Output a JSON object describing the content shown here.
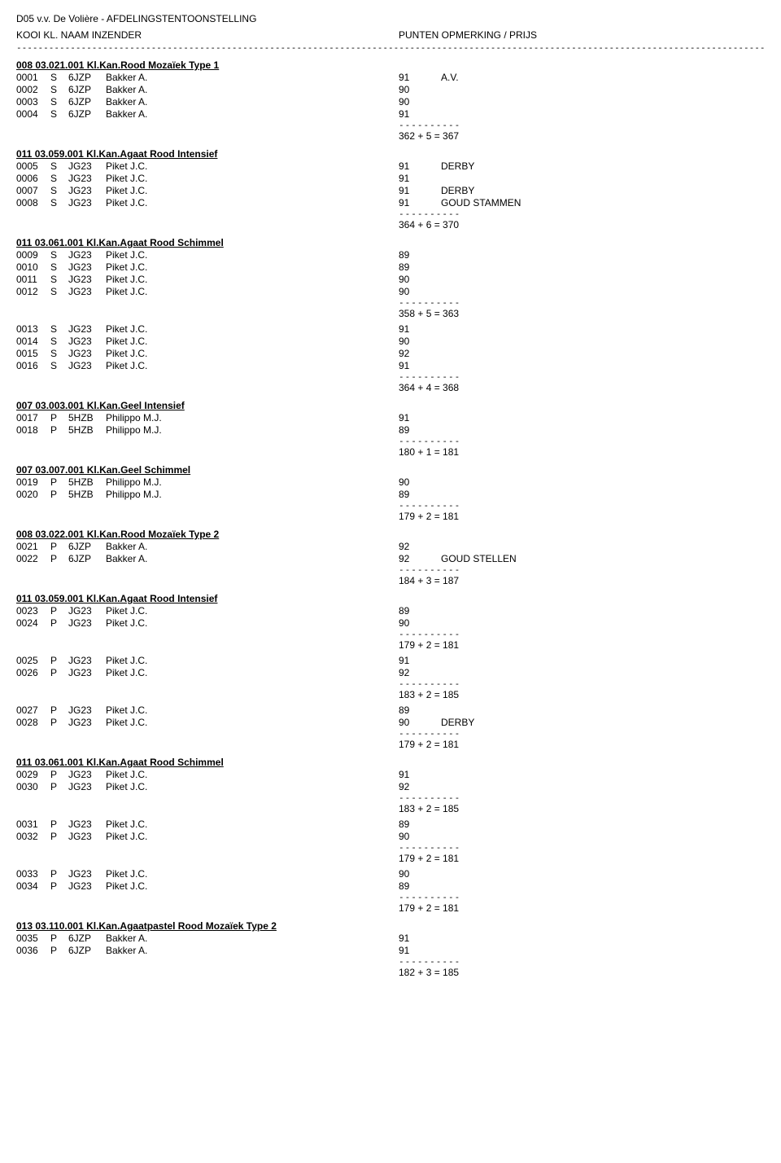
{
  "header": {
    "title": "D05 v.v. De Volière  -  AFDELINGSTENTOONSTELLING",
    "col_left": "KOOI  KL.  NAAM INZENDER",
    "col_right": "PUNTEN  OPMERKING / PRIJS",
    "dashline": "-----------------------------------------------------------------------------------------------------------------------------------------------------------------------------------------------------------------"
  },
  "groups": [
    {
      "header": "008 03.021.001  Kl.Kan.Rood Mozaïek Type 1",
      "blocks": [
        {
          "rows": [
            {
              "kooi": "0001",
              "kl": "S",
              "code": "6JZP",
              "naam": "Bakker A.",
              "punt": "91",
              "opm": "A.V."
            },
            {
              "kooi": "0002",
              "kl": "S",
              "code": "6JZP",
              "naam": "Bakker A.",
              "punt": "90",
              "opm": ""
            },
            {
              "kooi": "0003",
              "kl": "S",
              "code": "6JZP",
              "naam": "Bakker A.",
              "punt": "90",
              "opm": ""
            },
            {
              "kooi": "0004",
              "kl": "S",
              "code": "6JZP",
              "naam": "Bakker A.",
              "punt": "91",
              "opm": ""
            }
          ],
          "sep": "----------",
          "total": " 362 + 5 = 367"
        }
      ]
    },
    {
      "header": "011 03.059.001  Kl.Kan.Agaat Rood Intensief",
      "blocks": [
        {
          "rows": [
            {
              "kooi": "0005",
              "kl": "S",
              "code": "JG23",
              "naam": "Piket J.C.",
              "punt": "91",
              "opm": "DERBY"
            },
            {
              "kooi": "0006",
              "kl": "S",
              "code": "JG23",
              "naam": "Piket J.C.",
              "punt": "91",
              "opm": ""
            },
            {
              "kooi": "0007",
              "kl": "S",
              "code": "JG23",
              "naam": "Piket J.C.",
              "punt": "91",
              "opm": "DERBY"
            },
            {
              "kooi": "0008",
              "kl": "S",
              "code": "JG23",
              "naam": "Piket J.C.",
              "punt": "91",
              "opm": "GOUD STAMMEN"
            }
          ],
          "sep": "----------",
          "total": " 364 + 6 = 370"
        }
      ]
    },
    {
      "header": "011 03.061.001  Kl.Kan.Agaat Rood Schimmel",
      "blocks": [
        {
          "rows": [
            {
              "kooi": "0009",
              "kl": "S",
              "code": "JG23",
              "naam": "Piket J.C.",
              "punt": "89",
              "opm": ""
            },
            {
              "kooi": "0010",
              "kl": "S",
              "code": "JG23",
              "naam": "Piket J.C.",
              "punt": "89",
              "opm": ""
            },
            {
              "kooi": "0011",
              "kl": "S",
              "code": "JG23",
              "naam": "Piket J.C.",
              "punt": "90",
              "opm": ""
            },
            {
              "kooi": "0012",
              "kl": "S",
              "code": "JG23",
              "naam": "Piket J.C.",
              "punt": "90",
              "opm": ""
            }
          ],
          "sep": "----------",
          "total": " 358 + 5 = 363"
        },
        {
          "rows": [
            {
              "kooi": "0013",
              "kl": "S",
              "code": "JG23",
              "naam": "Piket J.C.",
              "punt": "91",
              "opm": ""
            },
            {
              "kooi": "0014",
              "kl": "S",
              "code": "JG23",
              "naam": "Piket J.C.",
              "punt": "90",
              "opm": ""
            },
            {
              "kooi": "0015",
              "kl": "S",
              "code": "JG23",
              "naam": "Piket J.C.",
              "punt": "92",
              "opm": ""
            },
            {
              "kooi": "0016",
              "kl": "S",
              "code": "JG23",
              "naam": "Piket J.C.",
              "punt": "91",
              "opm": ""
            }
          ],
          "sep": "----------",
          "total": " 364 + 4 = 368"
        }
      ]
    },
    {
      "header": "007 03.003.001  Kl.Kan.Geel Intensief",
      "blocks": [
        {
          "rows": [
            {
              "kooi": "0017",
              "kl": "P",
              "code": "5HZB",
              "naam": "Philippo M.J.",
              "punt": "91",
              "opm": ""
            },
            {
              "kooi": "0018",
              "kl": "P",
              "code": "5HZB",
              "naam": "Philippo M.J.",
              "punt": "89",
              "opm": ""
            }
          ],
          "sep": "----------",
          "total": " 180 + 1 = 181"
        }
      ]
    },
    {
      "header": "007 03.007.001  Kl.Kan.Geel Schimmel",
      "blocks": [
        {
          "rows": [
            {
              "kooi": "0019",
              "kl": "P",
              "code": "5HZB",
              "naam": "Philippo M.J.",
              "punt": "90",
              "opm": ""
            },
            {
              "kooi": "0020",
              "kl": "P",
              "code": "5HZB",
              "naam": "Philippo M.J.",
              "punt": "89",
              "opm": ""
            }
          ],
          "sep": "----------",
          "total": " 179 + 2 = 181"
        }
      ]
    },
    {
      "header": "008 03.022.001  Kl.Kan.Rood Mozaïek Type 2",
      "blocks": [
        {
          "rows": [
            {
              "kooi": "0021",
              "kl": "P",
              "code": "6JZP",
              "naam": "Bakker A.",
              "punt": "92",
              "opm": ""
            },
            {
              "kooi": "0022",
              "kl": "P",
              "code": "6JZP",
              "naam": "Bakker A.",
              "punt": "92",
              "opm": "GOUD STELLEN"
            }
          ],
          "sep": "----------",
          "total": " 184 + 3 = 187"
        }
      ]
    },
    {
      "header": "011 03.059.001  Kl.Kan.Agaat Rood Intensief",
      "blocks": [
        {
          "rows": [
            {
              "kooi": "0023",
              "kl": "P",
              "code": "JG23",
              "naam": "Piket J.C.",
              "punt": "89",
              "opm": ""
            },
            {
              "kooi": "0024",
              "kl": "P",
              "code": "JG23",
              "naam": "Piket J.C.",
              "punt": "90",
              "opm": ""
            }
          ],
          "sep": "----------",
          "total": " 179 + 2 = 181"
        },
        {
          "rows": [
            {
              "kooi": "0025",
              "kl": "P",
              "code": "JG23",
              "naam": "Piket J.C.",
              "punt": "91",
              "opm": ""
            },
            {
              "kooi": "0026",
              "kl": "P",
              "code": "JG23",
              "naam": "Piket J.C.",
              "punt": "92",
              "opm": ""
            }
          ],
          "sep": "----------",
          "total": " 183 + 2 = 185"
        },
        {
          "rows": [
            {
              "kooi": "0027",
              "kl": "P",
              "code": "JG23",
              "naam": "Piket J.C.",
              "punt": "89",
              "opm": ""
            },
            {
              "kooi": "0028",
              "kl": "P",
              "code": "JG23",
              "naam": "Piket J.C.",
              "punt": "90",
              "opm": "DERBY"
            }
          ],
          "sep": "----------",
          "total": " 179 + 2 = 181"
        }
      ]
    },
    {
      "header": "011 03.061.001  Kl.Kan.Agaat Rood Schimmel",
      "blocks": [
        {
          "rows": [
            {
              "kooi": "0029",
              "kl": "P",
              "code": "JG23",
              "naam": "Piket J.C.",
              "punt": "91",
              "opm": ""
            },
            {
              "kooi": "0030",
              "kl": "P",
              "code": "JG23",
              "naam": "Piket J.C.",
              "punt": "92",
              "opm": ""
            }
          ],
          "sep": "----------",
          "total": " 183 + 2 = 185"
        },
        {
          "rows": [
            {
              "kooi": "0031",
              "kl": "P",
              "code": "JG23",
              "naam": "Piket J.C.",
              "punt": "89",
              "opm": ""
            },
            {
              "kooi": "0032",
              "kl": "P",
              "code": "JG23",
              "naam": "Piket J.C.",
              "punt": "90",
              "opm": ""
            }
          ],
          "sep": "----------",
          "total": " 179 + 2 = 181"
        },
        {
          "rows": [
            {
              "kooi": "0033",
              "kl": "P",
              "code": "JG23",
              "naam": "Piket J.C.",
              "punt": "90",
              "opm": ""
            },
            {
              "kooi": "0034",
              "kl": "P",
              "code": "JG23",
              "naam": "Piket J.C.",
              "punt": "89",
              "opm": ""
            }
          ],
          "sep": "----------",
          "total": " 179 + 2 = 181"
        }
      ]
    },
    {
      "header": "013 03.110.001  Kl.Kan.Agaatpastel Rood Mozaïek Type 2",
      "blocks": [
        {
          "rows": [
            {
              "kooi": "0035",
              "kl": "P",
              "code": "6JZP",
              "naam": "Bakker A.",
              "punt": "91",
              "opm": ""
            },
            {
              "kooi": "0036",
              "kl": "P",
              "code": "6JZP",
              "naam": "Bakker A.",
              "punt": "91",
              "opm": ""
            }
          ],
          "sep": "----------",
          "total": " 182 + 3 = 185"
        }
      ]
    }
  ]
}
